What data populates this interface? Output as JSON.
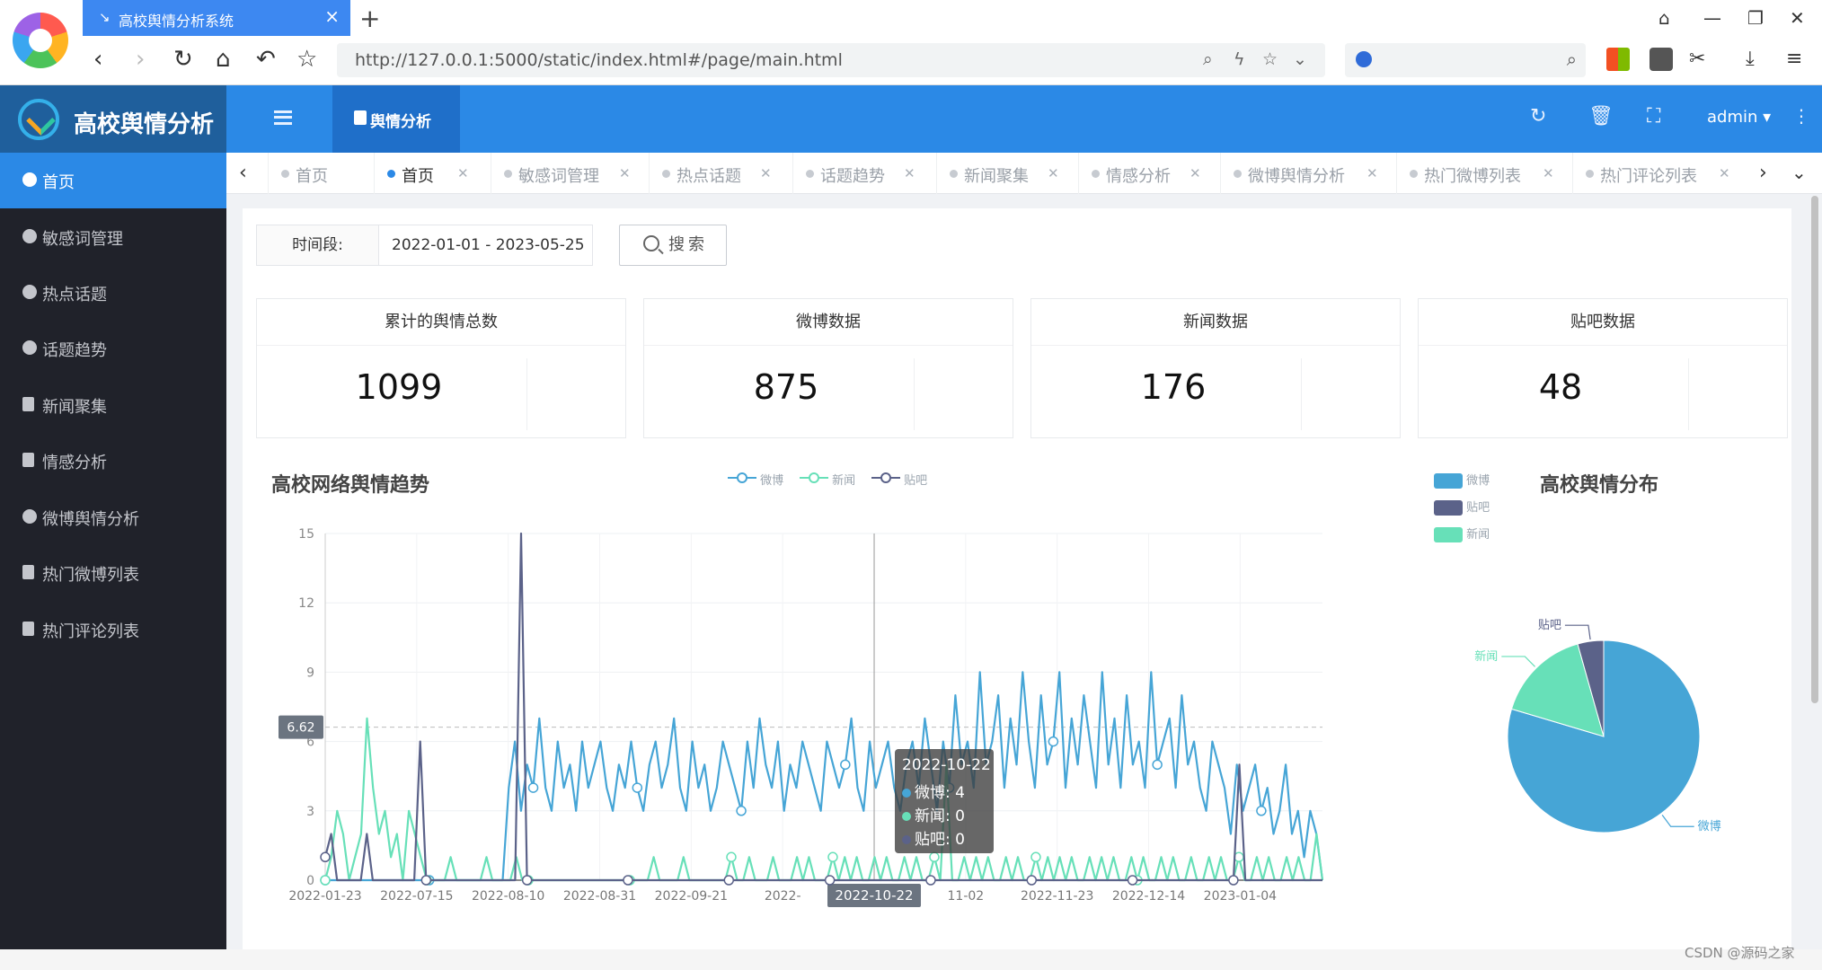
{
  "browser": {
    "tab_title": "高校舆情分析系统",
    "tab_close": "×",
    "new_tab": "+",
    "url": "http://127.0.0.1:5000/static/index.html#/page/main.html"
  },
  "app": {
    "brand_title": "高校舆情分析",
    "top_tab": "舆情分析",
    "user": "admin"
  },
  "sidebar": {
    "items": [
      {
        "label": "首页",
        "icon": "home-gauge-icon",
        "active": true
      },
      {
        "label": "敏感词管理",
        "icon": "gauge-icon"
      },
      {
        "label": "热点话题",
        "icon": "gauge-icon"
      },
      {
        "label": "话题趋势",
        "icon": "gauge-icon"
      },
      {
        "label": "新闻聚集",
        "icon": "document-icon"
      },
      {
        "label": "情感分析",
        "icon": "document-icon"
      },
      {
        "label": "微博舆情分析",
        "icon": "gauge-icon"
      },
      {
        "label": "热门微博列表",
        "icon": "document-icon"
      },
      {
        "label": "热门评论列表",
        "icon": "document-icon"
      }
    ]
  },
  "tabs": [
    {
      "label": "首页",
      "closable": false,
      "active": false
    },
    {
      "label": "首页",
      "closable": true,
      "active": true
    },
    {
      "label": "敏感词管理",
      "closable": true
    },
    {
      "label": "热点话题",
      "closable": true
    },
    {
      "label": "话题趋势",
      "closable": true
    },
    {
      "label": "新闻聚集",
      "closable": true
    },
    {
      "label": "情感分析",
      "closable": true
    },
    {
      "label": "微博舆情分析",
      "closable": true
    },
    {
      "label": "热门微博列表",
      "closable": true
    },
    {
      "label": "热门评论列表",
      "closable": true
    }
  ],
  "filter": {
    "label": "时间段:",
    "value": "2022-01-01 - 2023-05-25",
    "search_label": "搜索"
  },
  "stats": [
    {
      "title": "累计的舆情总数",
      "value": "1099"
    },
    {
      "title": "微博数据",
      "value": "875"
    },
    {
      "title": "新闻数据",
      "value": "176"
    },
    {
      "title": "贴吧数据",
      "value": "48"
    }
  ],
  "tooltip": {
    "date": "2022-10-22",
    "rows": [
      "微博: 4",
      "新闻: 0",
      "贴吧: 0"
    ]
  },
  "watermark": "CSDN @源码之家",
  "colors": {
    "weibo": "#46a5d6",
    "news": "#67e0b8",
    "tieba": "#5b6289",
    "accent": "#2b89e6",
    "sidebar": "#20222a"
  },
  "chart_data": [
    {
      "type": "line",
      "title": "高校网络舆情趋势",
      "legend": [
        "微博",
        "新闻",
        "贴吧"
      ],
      "legend_position": "top-center",
      "ylim": [
        0,
        15
      ],
      "yticks": [
        0,
        3,
        6,
        9,
        12,
        15
      ],
      "y_axis_pointer": "6.62",
      "x_tick_labels": [
        "2022-01-23",
        "2022-07-15",
        "2022-08-10",
        "2022-08-31",
        "2022-09-21",
        "2022-",
        "2022-10-22",
        "11-02",
        "2022-11-23",
        "2022-12-14",
        "2023-01-04"
      ],
      "x_axis_pointer": "2022-10-22",
      "grid": true,
      "series": [
        {
          "name": "微博",
          "values": [
            0,
            0,
            0,
            0,
            0,
            0,
            0,
            0,
            0,
            0,
            0,
            0,
            0,
            0,
            0,
            0,
            0,
            0,
            0,
            0,
            0,
            0,
            0,
            0,
            0,
            0,
            0,
            0,
            0,
            0,
            4,
            6,
            3,
            5,
            4,
            7,
            4,
            3,
            6,
            4,
            5,
            3,
            6,
            4,
            5,
            6,
            4,
            3,
            5,
            4,
            6,
            4,
            3,
            5,
            6,
            4,
            5,
            7,
            4,
            3,
            6,
            4,
            5,
            3,
            4,
            6,
            5,
            4,
            3,
            6,
            4,
            7,
            5,
            4,
            6,
            3,
            5,
            4,
            6,
            5,
            4,
            3,
            6,
            5,
            4,
            5,
            7,
            4,
            3,
            6,
            4,
            5,
            6,
            4,
            3,
            5,
            6,
            4,
            7,
            5,
            3,
            6,
            4,
            8,
            5,
            6,
            4,
            9,
            5,
            6,
            8,
            4,
            7,
            5,
            9,
            6,
            4,
            8,
            5,
            6,
            9,
            4,
            7,
            5,
            8,
            6,
            4,
            9,
            5,
            7,
            4,
            8,
            5,
            6,
            4,
            9,
            5,
            6,
            7,
            4,
            8,
            5,
            6,
            4,
            3,
            6,
            5,
            4,
            2,
            5,
            3,
            4,
            5,
            3,
            4,
            2,
            3,
            5,
            2,
            3,
            1,
            3,
            2,
            0
          ]
        },
        {
          "name": "新闻",
          "values": [
            0,
            1,
            3,
            2,
            0,
            1,
            2,
            7,
            4,
            2,
            3,
            1,
            2,
            0,
            3,
            2,
            1,
            0,
            0,
            0,
            0,
            1,
            0,
            0,
            0,
            0,
            0,
            1,
            0,
            0,
            0,
            0,
            1,
            0,
            0,
            0,
            0,
            0,
            0,
            0,
            0,
            0,
            0,
            0,
            0,
            0,
            0,
            0,
            0,
            0,
            0,
            0,
            0,
            0,
            0,
            1,
            0,
            0,
            0,
            0,
            1,
            0,
            0,
            0,
            0,
            0,
            0,
            0,
            1,
            0,
            0,
            1,
            0,
            0,
            0,
            1,
            0,
            0,
            0,
            1,
            0,
            1,
            0,
            0,
            0,
            1,
            0,
            1,
            0,
            1,
            0,
            0,
            1,
            0,
            1,
            0,
            0,
            1,
            0,
            1,
            0,
            0,
            1,
            0,
            5,
            0,
            0,
            1,
            0,
            1,
            0,
            1,
            0,
            0,
            1,
            0,
            1,
            0,
            0,
            1,
            0,
            1,
            0,
            1,
            0,
            1,
            0,
            0,
            1,
            0,
            1,
            0,
            1,
            0,
            0,
            1,
            0,
            1,
            0,
            0,
            1,
            0,
            1,
            0,
            0,
            1,
            0,
            0,
            1,
            0,
            1,
            0,
            0,
            1,
            0,
            0,
            1,
            0,
            1,
            0,
            0,
            1,
            0,
            1,
            0,
            0,
            2,
            0
          ]
        },
        {
          "name": "贴吧",
          "values": [
            1,
            2,
            0,
            0,
            0,
            0,
            0,
            2,
            0,
            0,
            0,
            0,
            0,
            0,
            0,
            0,
            6,
            0,
            0,
            0,
            0,
            0,
            0,
            0,
            0,
            0,
            0,
            0,
            0,
            0,
            0,
            0,
            0,
            15,
            0,
            0,
            0,
            0,
            0,
            0,
            0,
            0,
            0,
            0,
            0,
            0,
            0,
            0,
            0,
            0,
            0,
            0,
            0,
            0,
            0,
            0,
            0,
            0,
            0,
            0,
            0,
            0,
            0,
            0,
            0,
            0,
            0,
            0,
            0,
            0,
            0,
            0,
            0,
            0,
            0,
            0,
            0,
            0,
            0,
            0,
            0,
            0,
            0,
            0,
            0,
            0,
            0,
            0,
            0,
            0,
            0,
            0,
            0,
            0,
            0,
            0,
            0,
            0,
            0,
            0,
            0,
            0,
            0,
            0,
            0,
            0,
            0,
            0,
            0,
            0,
            0,
            0,
            0,
            0,
            0,
            0,
            0,
            0,
            0,
            0,
            0,
            0,
            0,
            0,
            0,
            0,
            0,
            0,
            0,
            0,
            0,
            0,
            0,
            0,
            0,
            0,
            0,
            0,
            0,
            0,
            0,
            0,
            0,
            0,
            0,
            0,
            0,
            0,
            0,
            0,
            0,
            0,
            0,
            0,
            5,
            0,
            0,
            0,
            0,
            0,
            0,
            0,
            0,
            0,
            0,
            0,
            0,
            0,
            0
          ]
        }
      ]
    },
    {
      "type": "pie",
      "title": "高校舆情分布",
      "legend": [
        "微博",
        "贴吧",
        "新闻"
      ],
      "legend_position": "top-left",
      "slices": [
        {
          "name": "微博",
          "value": 875
        },
        {
          "name": "新闻",
          "value": 176
        },
        {
          "name": "贴吧",
          "value": 48
        }
      ]
    }
  ]
}
